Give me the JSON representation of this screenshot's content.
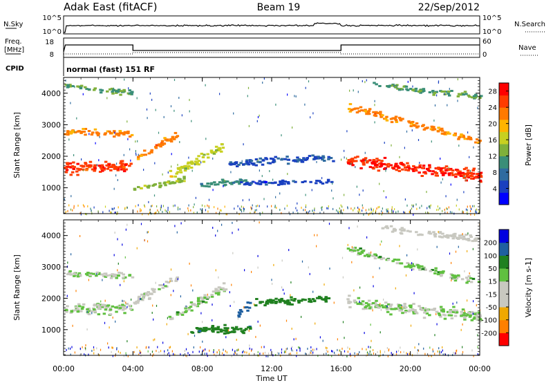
{
  "header": {
    "station": "Adak East (fitACF)",
    "beam": "Beam 19",
    "date": "22/Sep/2012"
  },
  "noise_panel": {
    "left_label": "N.Sky",
    "right_label": "N.Search",
    "left_ticks": [
      "10^5",
      "10^0"
    ],
    "right_ticks": [
      "10^5",
      "10^0"
    ]
  },
  "freq_panel": {
    "left_label_line1": "Freq.",
    "left_label_line2": "[MHz]",
    "right_label": "Nave",
    "left_ticks": [
      "18",
      "8"
    ],
    "right_ticks": [
      "60",
      "0"
    ],
    "cpid_label": "CPID",
    "program_label": "normal (fast) 151 RF"
  },
  "colors": {
    "power_scale": [
      "#0000ff",
      "#1a40c0",
      "#2f6ba0",
      "#3a8e78",
      "#7fb03a",
      "#c8d020",
      "#ffb400",
      "#ff7a00",
      "#ff3c00",
      "#ff0000"
    ],
    "velocity_scale": [
      "#ff0000",
      "#ff8000",
      "#f0a800",
      "#c8c8c0",
      "#c8c8c0",
      "#60c040",
      "#208020",
      "#2060a0",
      "#0000e0"
    ]
  },
  "chart_data": [
    {
      "type": "heatmap",
      "name": "power",
      "ylabel": "Slant Range [km]",
      "yticks": [
        1000,
        2000,
        3000,
        4000
      ],
      "ylim": [
        180,
        4500
      ],
      "xlim": [
        0,
        24
      ],
      "colorbar_label": "Power [dB]",
      "colorbar_ticks": [
        4,
        8,
        12,
        16,
        20,
        24,
        28
      ],
      "colorbar_range": [
        0,
        30
      ],
      "bands": [
        {
          "x": [
            0,
            3.9
          ],
          "y_start": 1650,
          "y_end": 1750,
          "thickness": 500,
          "value": 26
        },
        {
          "x": [
            0,
            3.9
          ],
          "y_start": 2800,
          "y_end": 2750,
          "thickness": 300,
          "value": 22
        },
        {
          "x": [
            0,
            3.9
          ],
          "y_start": 4250,
          "y_end": 4050,
          "thickness": 250,
          "value": 12
        },
        {
          "x": [
            4.0,
            6.5
          ],
          "y_start": 1900,
          "y_end": 2700,
          "thickness": 350,
          "value": 22
        },
        {
          "x": [
            4.0,
            7.0
          ],
          "y_start": 1000,
          "y_end": 1300,
          "thickness": 250,
          "value": 14
        },
        {
          "x": [
            6.0,
            9.3
          ],
          "y_start": 1400,
          "y_end": 2400,
          "thickness": 400,
          "value": 16
        },
        {
          "x": [
            7.5,
            10.5
          ],
          "y_start": 1100,
          "y_end": 1250,
          "thickness": 250,
          "value": 10
        },
        {
          "x": [
            9.5,
            15.5
          ],
          "y_start": 1800,
          "y_end": 2000,
          "thickness": 300,
          "value": 6
        },
        {
          "x": [
            10.0,
            15.5
          ],
          "y_start": 1150,
          "y_end": 1250,
          "thickness": 200,
          "value": 5
        },
        {
          "x": [
            16.3,
            24
          ],
          "y_start": 1900,
          "y_end": 1400,
          "thickness": 550,
          "value": 27
        },
        {
          "x": [
            16.3,
            24
          ],
          "y_start": 3600,
          "y_end": 2500,
          "thickness": 300,
          "value": 22
        },
        {
          "x": [
            17.8,
            24
          ],
          "y_start": 4300,
          "y_end": 3900,
          "thickness": 250,
          "value": 12
        }
      ]
    },
    {
      "type": "heatmap",
      "name": "velocity",
      "ylabel": "Slant Range [km]",
      "yticks": [
        1000,
        2000,
        3000,
        4000
      ],
      "ylim": [
        180,
        4500
      ],
      "xlim": [
        0,
        24
      ],
      "xlabel": "Time UT",
      "xticks": [
        "00:00",
        "04:00",
        "08:00",
        "12:00",
        "16:00",
        "20:00",
        "00:00"
      ],
      "colorbar_label": "Velocity [m s-1]",
      "colorbar_ticks": [
        -200,
        -100,
        -50,
        -15,
        15,
        50,
        100,
        200
      ],
      "bands": [
        {
          "x": [
            0,
            3.9
          ],
          "y_start": 1650,
          "y_end": 1750,
          "thickness": 500,
          "value": 0
        },
        {
          "x": [
            0,
            3.9
          ],
          "y_start": 2800,
          "y_end": 2750,
          "thickness": 300,
          "value": 0
        },
        {
          "x": [
            4.0,
            6.5
          ],
          "y_start": 1900,
          "y_end": 2700,
          "thickness": 350,
          "value": -5
        },
        {
          "x": [
            6.0,
            9.3
          ],
          "y_start": 1400,
          "y_end": 2400,
          "thickness": 400,
          "value": 0
        },
        {
          "x": [
            7.3,
            10.8
          ],
          "y_start": 1000,
          "y_end": 1050,
          "thickness": 400,
          "value": 40
        },
        {
          "x": [
            10.0,
            10.8
          ],
          "y_start": 1500,
          "y_end": 1900,
          "thickness": 350,
          "value": 60
        },
        {
          "x": [
            11.0,
            15.5
          ],
          "y_start": 1900,
          "y_end": 2000,
          "thickness": 300,
          "value": 30
        },
        {
          "x": [
            16.3,
            24
          ],
          "y_start": 1900,
          "y_end": 1450,
          "thickness": 500,
          "value": 0
        },
        {
          "x": [
            16.3,
            24
          ],
          "y_start": 3600,
          "y_end": 2500,
          "thickness": 300,
          "value": 5
        },
        {
          "x": [
            17.8,
            24
          ],
          "y_start": 4300,
          "y_end": 3900,
          "thickness": 250,
          "value": -20
        }
      ]
    }
  ]
}
